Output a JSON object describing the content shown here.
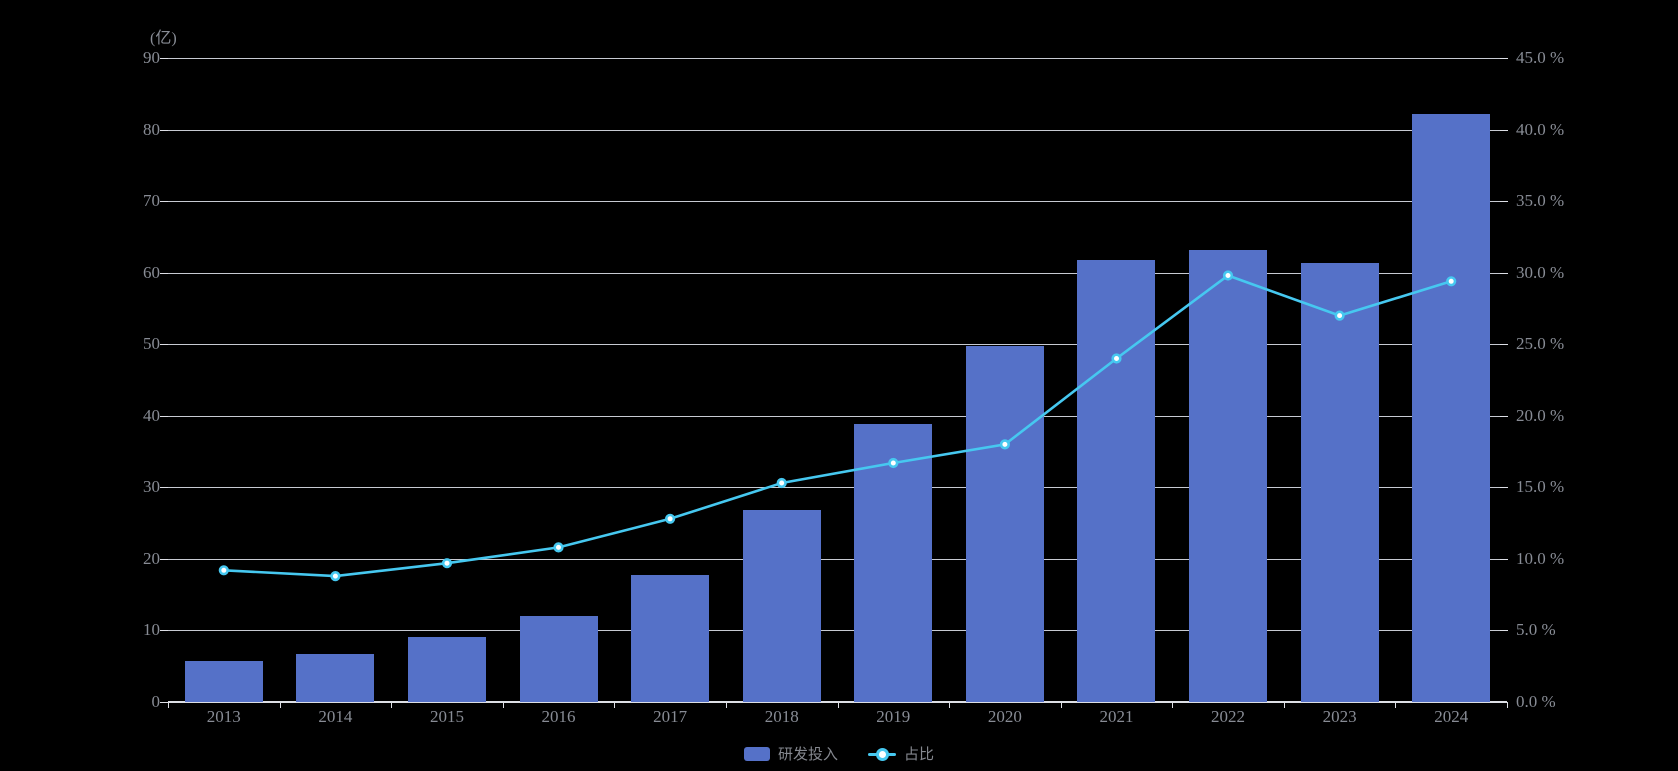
{
  "chart": {
    "unit_label": "(亿)",
    "background": "#000000",
    "legend": {
      "items": [
        {
          "label": "研发投入",
          "type": "bar",
          "color": "#5571C8"
        },
        {
          "label": "占比",
          "type": "line",
          "color": "#46C8F0"
        }
      ]
    }
  },
  "colors": {
    "background": "#000000",
    "bar": "#5571C8",
    "line": "#46C8F0",
    "marker_fill": "#FFFFFF",
    "grid": "#C7CAD2",
    "axis_line": "#DDDFE5",
    "axis_text": "#888C95",
    "legend_text": "#85888F"
  },
  "chart_data": {
    "type": "bar+line",
    "title": "",
    "categories": [
      "2013",
      "2014",
      "2015",
      "2016",
      "2017",
      "2018",
      "2019",
      "2020",
      "2021",
      "2022",
      "2023",
      "2024"
    ],
    "series": [
      {
        "name": "研发投入",
        "type": "bar",
        "yaxis": "left",
        "unit": "亿",
        "color": "#5571C8",
        "values": [
          5.7,
          6.7,
          9.1,
          12.0,
          17.7,
          26.8,
          38.9,
          49.7,
          61.8,
          63.2,
          61.4,
          82.2
        ]
      },
      {
        "name": "占比",
        "type": "line",
        "yaxis": "right",
        "unit": "%",
        "color": "#46C8F0",
        "values": [
          9.2,
          8.8,
          9.7,
          10.8,
          12.8,
          15.3,
          16.7,
          18.0,
          24.0,
          29.8,
          27.0,
          29.4
        ]
      }
    ],
    "left_axis": {
      "unit": "(亿)",
      "min": 0,
      "max": 90,
      "interval": 10,
      "tick_labels": [
        "90",
        "80",
        "70",
        "60",
        "50",
        "40",
        "30",
        "20",
        "10",
        "0"
      ]
    },
    "right_axis": {
      "min": 0,
      "max": 45,
      "interval": 5,
      "tick_labels": [
        "45.0 %",
        "40.0 %",
        "35.0 %",
        "30.0 %",
        "25.0 %",
        "20.0 %",
        "15.0 %",
        "10.0 %",
        "5.0 %",
        "0.0 %"
      ]
    },
    "grid": true,
    "legend_position": "bottom-center"
  }
}
